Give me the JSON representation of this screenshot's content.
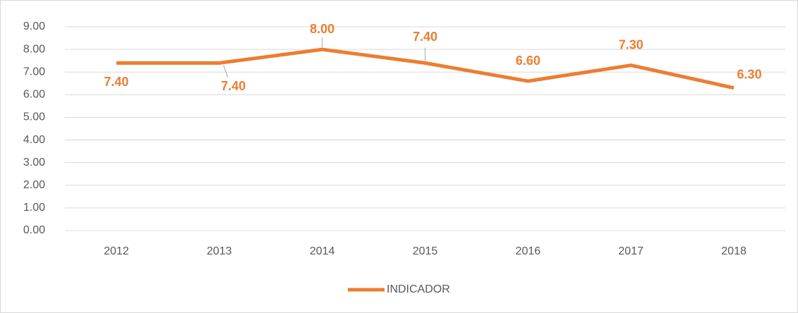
{
  "chart_data": {
    "type": "line",
    "categories": [
      "2012",
      "2013",
      "2014",
      "2015",
      "2016",
      "2017",
      "2018"
    ],
    "series": [
      {
        "name": "INDICADOR",
        "color": "#ed7d31",
        "values": [
          7.4,
          7.4,
          8.0,
          7.4,
          6.6,
          7.3,
          6.3
        ],
        "value_labels": [
          "7.40",
          "7.40",
          "8.00",
          "7.40",
          "6.60",
          "7.30",
          "6.30"
        ]
      }
    ],
    "ylim": [
      0,
      9
    ],
    "yticks": [
      {
        "value": 0,
        "label": "0.00"
      },
      {
        "value": 1,
        "label": "1.00"
      },
      {
        "value": 2,
        "label": "2.00"
      },
      {
        "value": 3,
        "label": "3.00"
      },
      {
        "value": 4,
        "label": "4.00"
      },
      {
        "value": 5,
        "label": "5.00"
      },
      {
        "value": 6,
        "label": "6.00"
      },
      {
        "value": 7,
        "label": "7.00"
      },
      {
        "value": 8,
        "label": "8.00"
      },
      {
        "value": 9,
        "label": "9.00"
      }
    ],
    "grid": true,
    "legend": "bottom"
  }
}
